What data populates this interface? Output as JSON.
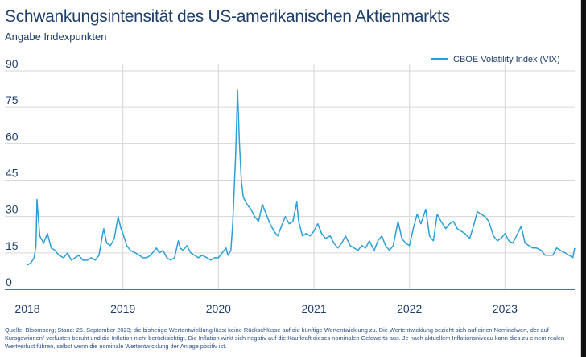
{
  "header": {
    "title": "Schwankungsintensität des US-amerikanischen Aktienmarkts",
    "subtitle": "Angabe Indexpunkten"
  },
  "footer": {
    "source": "Quelle: Bloomberg; Stand: 25. September 2023; die bisherige Wertentwicklung lässt keine Rückschlüsse auf die künftige Wertentwicklung zu. Die Wertentwicklung bezieht sich auf einen Nominalwert, der auf Kursgewinnen/-verlusten beruht und die Inflation nicht berücksichtigt. Die Inflation wirkt sich negativ auf die Kaufkraft dieses nominalen Geldwerts aus. Je nach aktuellem Inflationsniveau kann dies zu einem realen Wertverlust führen, selbst wenn die nominale Wertentwicklung der Anlage positiv ist."
  },
  "colors": {
    "line": "#2a9fd8",
    "axis_text": "#1f3f6b",
    "grid": "#d6d6d6",
    "baseline": "#1f3f6b"
  },
  "chart_data": {
    "type": "line",
    "title": "Schwankungsintensität des US-amerikanischen Aktienmarkts",
    "subtitle": "Angabe Indexpunkten",
    "xlabel": "",
    "ylabel": "",
    "xlim": [
      2018.0,
      2023.73
    ],
    "ylim": [
      0,
      90
    ],
    "yticks": [
      "0",
      "15",
      "30",
      "45",
      "60",
      "75",
      "90"
    ],
    "xticks": [
      "2018",
      "2019",
      "2020",
      "2021",
      "2022",
      "2023"
    ],
    "grid": true,
    "legend": "top-right",
    "series": [
      {
        "name": "CBOE Volatility Index (VIX)",
        "x": [
          2018.0,
          2018.04,
          2018.07,
          2018.09,
          2018.1,
          2018.13,
          2018.17,
          2018.21,
          2018.25,
          2018.29,
          2018.33,
          2018.38,
          2018.42,
          2018.46,
          2018.5,
          2018.54,
          2018.58,
          2018.63,
          2018.67,
          2018.71,
          2018.75,
          2018.78,
          2018.8,
          2018.83,
          2018.87,
          2018.91,
          2018.95,
          2018.98,
          2019.0,
          2019.04,
          2019.08,
          2019.13,
          2019.17,
          2019.21,
          2019.25,
          2019.29,
          2019.35,
          2019.38,
          2019.42,
          2019.46,
          2019.5,
          2019.54,
          2019.58,
          2019.6,
          2019.63,
          2019.67,
          2019.71,
          2019.75,
          2019.79,
          2019.83,
          2019.88,
          2019.92,
          2019.96,
          2020.0,
          2020.04,
          2020.08,
          2020.1,
          2020.13,
          2020.15,
          2020.18,
          2020.2,
          2020.22,
          2020.24,
          2020.26,
          2020.3,
          2020.34,
          2020.38,
          2020.42,
          2020.46,
          2020.5,
          2020.54,
          2020.58,
          2020.62,
          2020.66,
          2020.7,
          2020.74,
          2020.78,
          2020.82,
          2020.84,
          2020.88,
          2020.92,
          2020.96,
          2021.0,
          2021.04,
          2021.08,
          2021.12,
          2021.17,
          2021.21,
          2021.25,
          2021.29,
          2021.33,
          2021.38,
          2021.42,
          2021.46,
          2021.5,
          2021.54,
          2021.58,
          2021.63,
          2021.67,
          2021.71,
          2021.75,
          2021.79,
          2021.83,
          2021.88,
          2021.92,
          2021.96,
          2022.0,
          2022.04,
          2022.08,
          2022.12,
          2022.17,
          2022.21,
          2022.25,
          2022.29,
          2022.33,
          2022.38,
          2022.42,
          2022.46,
          2022.5,
          2022.54,
          2022.58,
          2022.63,
          2022.67,
          2022.71,
          2022.75,
          2022.79,
          2022.83,
          2022.88,
          2022.92,
          2022.96,
          2023.0,
          2023.04,
          2023.08,
          2023.12,
          2023.17,
          2023.21,
          2023.25,
          2023.29,
          2023.33,
          2023.38,
          2023.42,
          2023.46,
          2023.5,
          2023.54,
          2023.58,
          2023.63,
          2023.67,
          2023.71,
          2023.73
        ],
        "values": [
          10,
          11,
          13,
          18,
          37,
          22,
          19,
          23,
          17,
          16,
          14,
          13,
          15,
          12,
          13,
          14,
          12,
          12,
          13,
          12,
          14,
          21,
          25,
          19,
          18,
          21,
          30,
          25,
          23,
          18,
          16,
          15,
          14,
          13,
          13,
          14,
          17,
          15,
          16,
          13,
          12,
          13,
          20,
          17,
          16,
          18,
          15,
          14,
          13,
          14,
          13,
          12,
          13,
          13,
          15,
          17,
          14,
          16,
          27,
          55,
          82,
          60,
          45,
          38,
          35,
          33,
          30,
          28,
          35,
          31,
          27,
          24,
          22,
          26,
          30,
          27,
          28,
          36,
          28,
          22,
          23,
          22,
          24,
          27,
          23,
          21,
          22,
          19,
          17,
          19,
          22,
          18,
          17,
          16,
          18,
          17,
          20,
          16,
          20,
          22,
          18,
          16,
          18,
          28,
          21,
          19,
          18,
          25,
          31,
          27,
          33,
          22,
          20,
          31,
          28,
          25,
          27,
          28,
          25,
          24,
          23,
          21,
          26,
          32,
          31,
          30,
          28,
          22,
          20,
          21,
          23,
          20,
          19,
          22,
          26,
          19,
          18,
          17,
          17,
          16,
          14,
          14,
          14,
          17,
          16,
          15,
          14,
          13,
          17
        ]
      }
    ]
  }
}
